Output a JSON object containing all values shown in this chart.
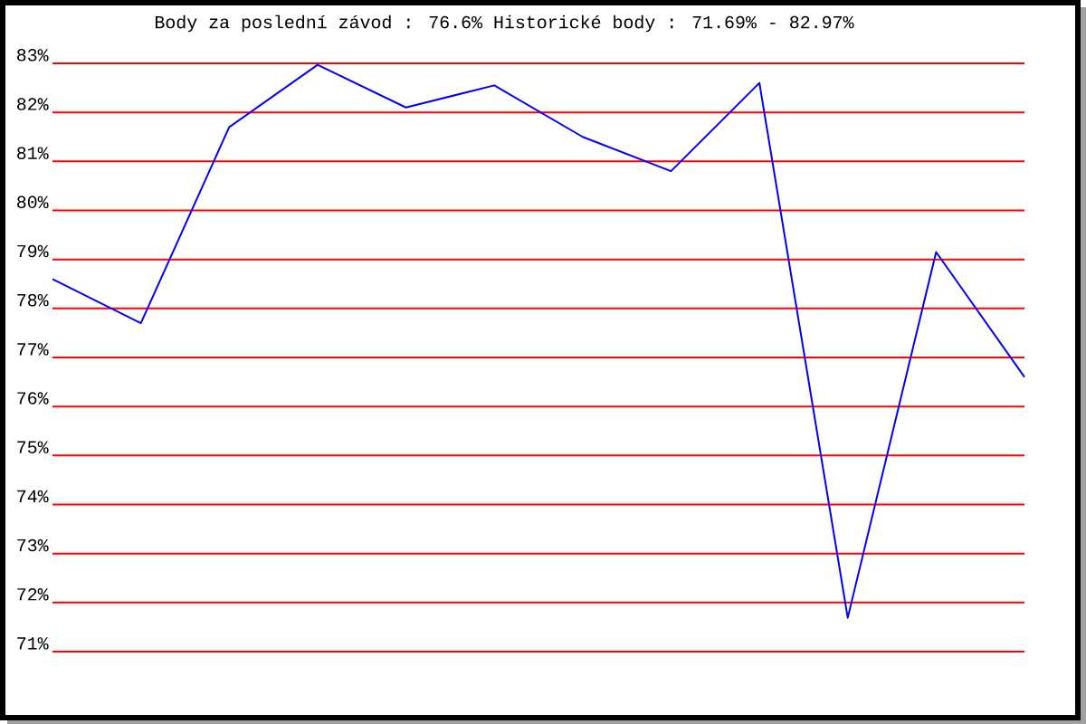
{
  "chart_data": {
    "type": "line",
    "title": "Body za poslední závod : 76.6%  Historické body : 71.69% - 82.97%",
    "categories": [
      null,
      null,
      null,
      null,
      null,
      null,
      null,
      null,
      null,
      null,
      null,
      null
    ],
    "series": [
      {
        "color": "#0000ff",
        "values": [
          78.6,
          77.7,
          81.7,
          82.97,
          82.1,
          82.55,
          81.5,
          80.8,
          82.6,
          71.69,
          79.15,
          76.6
        ]
      }
    ],
    "ylim": [
      71,
      83
    ],
    "yticks": [
      {
        "value": 71,
        "label": "71%"
      },
      {
        "value": 72,
        "label": "72%"
      },
      {
        "value": 73,
        "label": "73%"
      },
      {
        "value": 74,
        "label": "74%"
      },
      {
        "value": 75,
        "label": "75%"
      },
      {
        "value": 76,
        "label": "76%"
      },
      {
        "value": 77,
        "label": "77%"
      },
      {
        "value": 78,
        "label": "78%"
      },
      {
        "value": 79,
        "label": "79%"
      },
      {
        "value": 80,
        "label": "80%"
      },
      {
        "value": 81,
        "label": "81%"
      },
      {
        "value": 82,
        "label": "82%"
      },
      {
        "value": 83,
        "label": "83%"
      }
    ],
    "grid": "y",
    "legend": false,
    "marker": "none",
    "line_style": "solid",
    "tick_labels": "y"
  }
}
